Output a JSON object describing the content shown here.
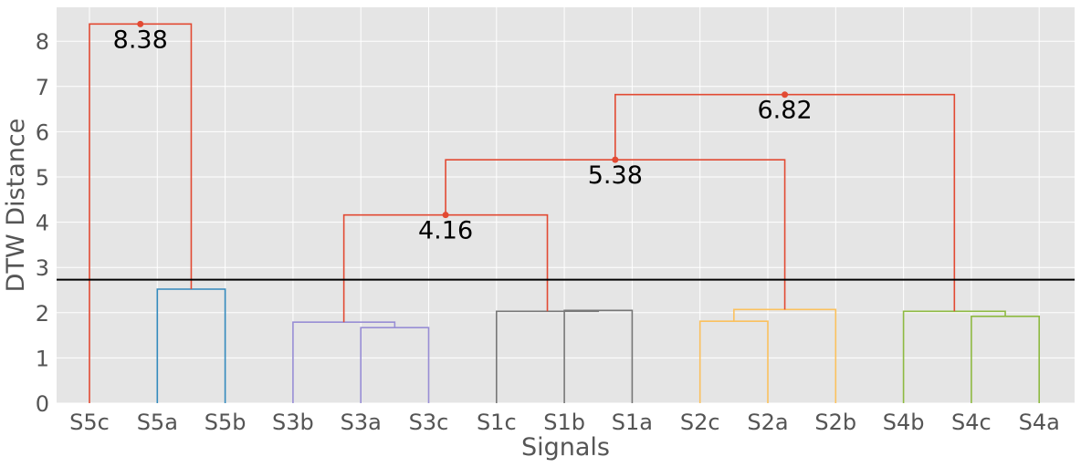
{
  "chart_data": {
    "type": "dendrogram",
    "xlabel": "Signals",
    "ylabel": "DTW Distance",
    "ylim": [
      0,
      8.75
    ],
    "y_ticks": [
      0,
      1,
      2,
      3,
      4,
      5,
      6,
      7,
      8
    ],
    "grid": true,
    "leaves": [
      "S5c",
      "S5a",
      "S5b",
      "S3b",
      "S3a",
      "S3c",
      "S1c",
      "S1b",
      "S1a",
      "S2c",
      "S2a",
      "S2b",
      "S4b",
      "S4c",
      "S4a"
    ],
    "threshold": 2.73,
    "merges": [
      {
        "left": "S5a",
        "right": "S5b",
        "height": 2.52,
        "color": "#348ABD"
      },
      {
        "left": "S3a",
        "right": "S3c",
        "height": 1.67,
        "color": "#988ED5"
      },
      {
        "left": "S3b",
        "right": "S3a+S3c",
        "height": 1.79,
        "color": "#988ED5"
      },
      {
        "left": "S1b",
        "right": "S1a",
        "height": 2.05,
        "color": "#777777"
      },
      {
        "left": "S1c",
        "right": "S1b+S1a",
        "height": 2.03,
        "color": "#777777"
      },
      {
        "left": "S2c",
        "right": "S2a",
        "height": 1.81,
        "color": "#FBC15E"
      },
      {
        "left": "S2c+S2a",
        "right": "S2b",
        "height": 2.07,
        "color": "#FBC15E"
      },
      {
        "left": "S4c",
        "right": "S4a",
        "height": 1.92,
        "color": "#8EBA42"
      },
      {
        "left": "S4b",
        "right": "S4c+S4a",
        "height": 2.03,
        "color": "#8EBA42"
      },
      {
        "left": "S5c",
        "right": "S5",
        "height": 8.38,
        "color": "#E24A33"
      },
      {
        "left": "S3",
        "right": "S1",
        "height": 4.16,
        "color": "#E24A33"
      },
      {
        "left": "S3+S1",
        "right": "S2",
        "height": 5.38,
        "color": "#E24A33"
      },
      {
        "left": "S3+S1+S2",
        "right": "S4",
        "height": 6.82,
        "color": "#E24A33"
      }
    ],
    "annotations": [
      "8.38",
      "6.82",
      "5.38",
      "4.16"
    ],
    "colors": {
      "background": "#E5E5E5",
      "grid": "#FFFFFF",
      "above_threshold": "#E24A33",
      "threshold_line": "#000000"
    }
  }
}
